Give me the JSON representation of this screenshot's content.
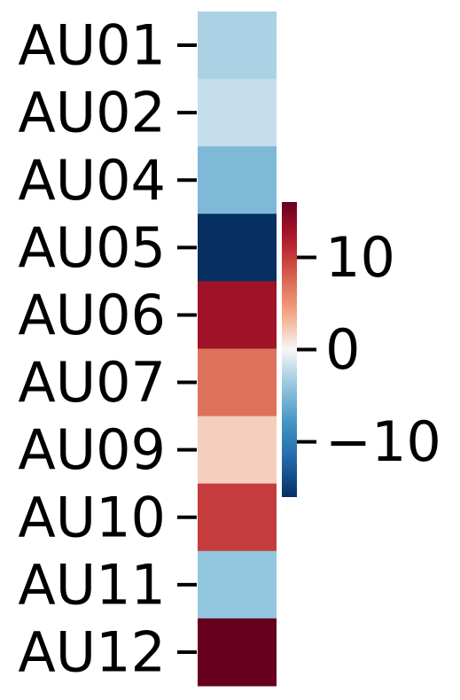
{
  "chart_data": {
    "type": "heatmap",
    "title": "",
    "xlabel": "",
    "ylabel": "",
    "rows": [
      "AU01",
      "AU02",
      "AU04",
      "AU05",
      "AU06",
      "AU07",
      "AU09",
      "AU10",
      "AU11",
      "AU12"
    ],
    "values": [
      -3,
      -2,
      -5,
      -16,
      13,
      7,
      2,
      10,
      -4,
      16
    ],
    "colormap": "RdBu_r",
    "vmin": -16,
    "vmax": 16,
    "colorbar": {
      "ticks": [
        10,
        0,
        -10
      ],
      "tick_labels": [
        "10",
        "0",
        "−10"
      ]
    },
    "grid": false,
    "legend": "none"
  }
}
